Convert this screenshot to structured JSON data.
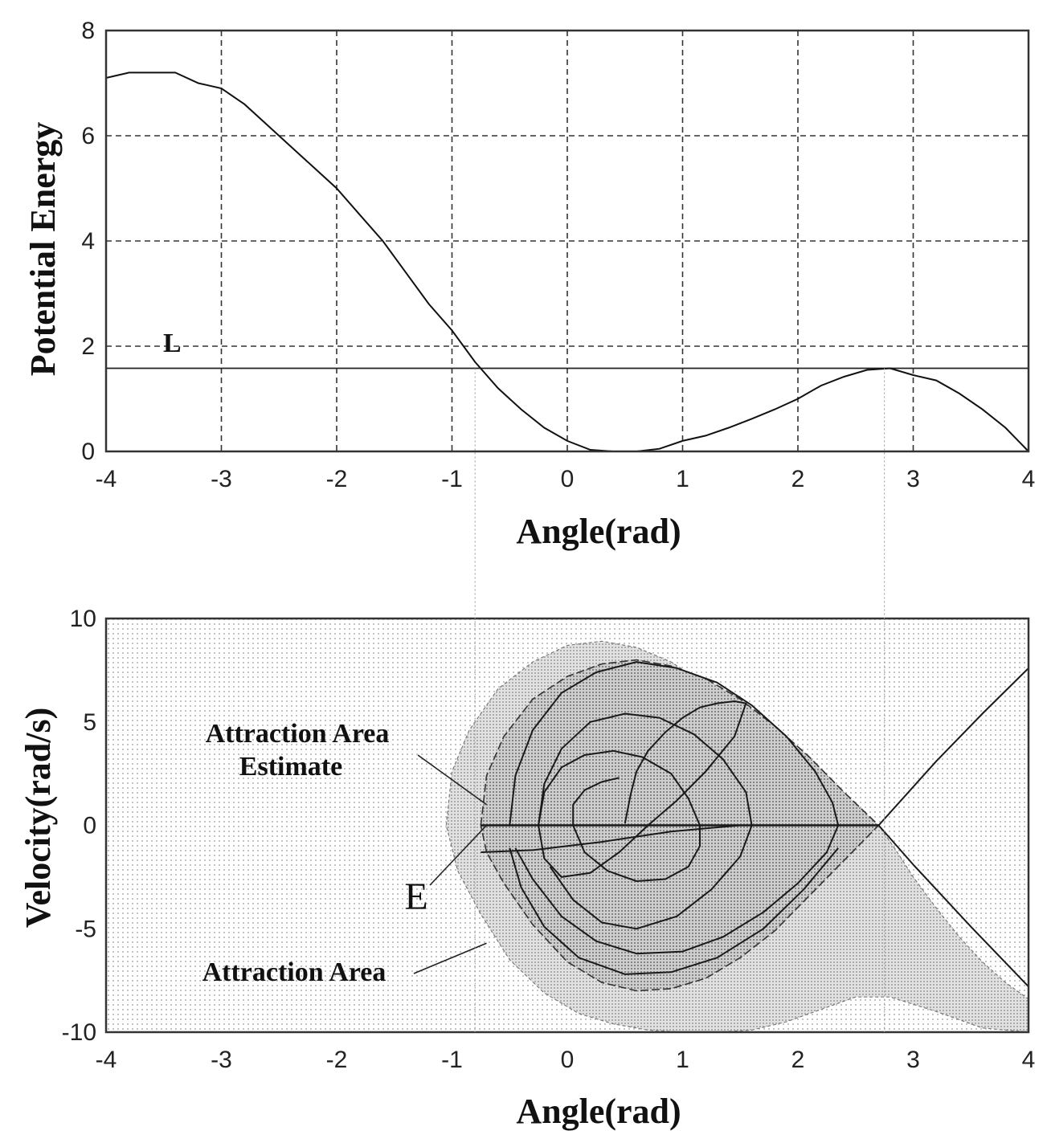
{
  "chart_data": [
    {
      "type": "line",
      "xlabel": "Angle(rad)",
      "ylabel": "Potential Energy",
      "xlim": [
        -4,
        4
      ],
      "ylim": [
        0,
        8
      ],
      "x_ticks": [
        -4,
        -3,
        -2,
        -1,
        0,
        1,
        2,
        3,
        4
      ],
      "y_ticks": [
        0,
        2,
        4,
        6,
        8
      ],
      "grid": "dashed",
      "series": [
        {
          "x": [
            -4.0,
            -3.8,
            -3.6,
            -3.4,
            -3.2,
            -3.0,
            -2.8,
            -2.6,
            -2.4,
            -2.2,
            -2.0,
            -1.8,
            -1.6,
            -1.4,
            -1.2,
            -1.0,
            -0.8,
            -0.6,
            -0.4,
            -0.2,
            0.0,
            0.2,
            0.4,
            0.6,
            0.8,
            1.0,
            1.2,
            1.4,
            1.6,
            1.8,
            2.0,
            2.2,
            2.4,
            2.6,
            2.8,
            3.0,
            3.2,
            3.4,
            3.6,
            3.8,
            4.0
          ],
          "y": [
            7.1,
            7.2,
            7.2,
            7.2,
            7.0,
            6.9,
            6.6,
            6.2,
            5.8,
            5.4,
            5.0,
            4.5,
            4.0,
            3.4,
            2.8,
            2.3,
            1.7,
            1.2,
            0.8,
            0.45,
            0.2,
            0.03,
            0.0,
            0.0,
            0.05,
            0.2,
            0.3,
            0.45,
            0.62,
            0.8,
            1.0,
            1.25,
            1.42,
            1.55,
            1.58,
            1.45,
            1.35,
            1.1,
            0.8,
            0.45,
            0.0
          ]
        }
      ],
      "reference_lines": [
        {
          "y": 1.58,
          "label": "L"
        }
      ]
    },
    {
      "type": "line",
      "xlabel": "Angle(rad)",
      "ylabel": "Velocity(rad/s)",
      "xlim": [
        -4,
        4
      ],
      "ylim": [
        -10,
        10
      ],
      "x_ticks": [
        -4,
        -3,
        -2,
        -1,
        0,
        1,
        2,
        3,
        4
      ],
      "y_ticks": [
        -10,
        -5,
        0,
        5,
        10
      ],
      "grid": "off",
      "annotations": [
        {
          "text": "Attraction Area Estimate",
          "lines": [
            "Attraction Area",
            "Estimate"
          ],
          "target": [
            -0.7,
            1.0
          ]
        },
        {
          "text": "E",
          "target": [
            -0.7,
            0.0
          ]
        },
        {
          "text": "Attraction Area",
          "target": [
            -0.7,
            -5.7
          ]
        }
      ],
      "regions": {
        "estimate_boundary": {
          "x": [
            -0.75,
            -0.7,
            -0.55,
            -0.3,
            0.0,
            0.3,
            0.6,
            0.9,
            1.2,
            1.5,
            1.8,
            2.1,
            2.4,
            2.7,
            2.4,
            2.1,
            1.8,
            1.5,
            1.2,
            0.9,
            0.6,
            0.3,
            0.0,
            -0.3,
            -0.55,
            -0.7
          ],
          "y": [
            0.0,
            2.4,
            4.3,
            6.1,
            7.2,
            7.8,
            8.0,
            7.7,
            7.1,
            6.1,
            4.8,
            3.3,
            1.6,
            0.0,
            -1.7,
            -3.4,
            -5.1,
            -6.4,
            -7.4,
            -7.9,
            -8.0,
            -7.6,
            -6.6,
            -4.8,
            -2.8,
            -1.3
          ]
        },
        "attraction_boundary": {
          "x": [
            -1.05,
            -1.0,
            -0.85,
            -0.6,
            -0.3,
            0.0,
            0.3,
            0.6,
            0.9,
            1.2,
            1.5,
            1.8,
            2.1,
            2.4,
            2.7,
            2.85,
            3.0,
            3.2,
            3.4,
            3.6,
            3.8,
            4.0,
            4.0,
            3.6,
            3.2,
            2.8,
            2.5,
            2.2,
            1.9,
            1.6,
            1.3,
            1.0,
            0.7,
            0.4,
            0.1,
            -0.2,
            -0.5,
            -0.75,
            -0.95
          ],
          "y": [
            0.0,
            2.6,
            4.6,
            6.6,
            7.9,
            8.7,
            8.9,
            8.6,
            7.9,
            6.8,
            5.4,
            3.9,
            2.4,
            1.0,
            0.0,
            -1.2,
            -2.5,
            -4.0,
            -5.4,
            -6.6,
            -7.6,
            -8.4,
            -10.0,
            -9.8,
            -9.0,
            -8.3,
            -8.3,
            -8.9,
            -9.5,
            -9.9,
            -10.0,
            -10.0,
            -9.9,
            -9.6,
            -9.1,
            -8.1,
            -6.5,
            -4.3,
            -2.2
          ]
        }
      },
      "series": [
        {
          "x": [
            -0.75,
            2.7
          ],
          "y": [
            0.0,
            0.0
          ]
        },
        {
          "x": [
            -0.75,
            -0.3,
            0.3,
            0.9,
            1.5,
            2.1,
            2.4,
            2.7,
            3.0,
            3.5,
            4.0
          ],
          "y": [
            -1.3,
            -1.2,
            -0.8,
            -0.3,
            0.0,
            0.0,
            0.0,
            0.0,
            -1.9,
            -4.9,
            -7.8
          ]
        },
        {
          "x": [
            2.7,
            3.2,
            3.6,
            4.0
          ],
          "y": [
            0.0,
            3.1,
            5.4,
            7.6
          ]
        },
        {
          "x": [
            0.5,
            0.55,
            0.6,
            0.7,
            0.85,
            1.0,
            1.15,
            1.3,
            1.45,
            1.55,
            1.45,
            1.2,
            0.95,
            0.7,
            0.45,
            0.2,
            -0.05,
            -0.2,
            -0.25,
            -0.2,
            -0.05,
            0.15,
            0.4,
            0.65,
            0.9,
            1.05,
            1.15,
            1.15,
            1.05,
            0.85,
            0.6,
            0.35,
            0.15,
            0.05,
            0.05,
            0.15,
            0.3,
            0.45
          ],
          "y": [
            0.1,
            1.5,
            2.6,
            3.6,
            4.5,
            5.2,
            5.7,
            5.9,
            6.0,
            5.9,
            4.3,
            2.6,
            1.2,
            0.0,
            -1.3,
            -2.3,
            -2.5,
            -1.6,
            0.0,
            1.6,
            2.8,
            3.4,
            3.6,
            3.3,
            2.5,
            1.3,
            0.0,
            -1.0,
            -2.0,
            -2.6,
            -2.7,
            -2.2,
            -1.3,
            0.0,
            1.0,
            1.7,
            2.1,
            2.3
          ]
        },
        {
          "x": [
            -0.5,
            -0.45,
            -0.3,
            -0.05,
            0.25,
            0.6,
            0.95,
            1.3,
            1.6,
            1.9,
            2.15,
            2.3,
            2.35,
            2.25,
            2.0,
            1.7,
            1.35,
            1.0,
            0.6,
            0.25,
            -0.05,
            -0.3,
            -0.45
          ],
          "y": [
            0.0,
            2.4,
            4.6,
            6.4,
            7.4,
            7.9,
            7.6,
            6.9,
            5.8,
            4.3,
            2.6,
            1.1,
            0.0,
            -1.3,
            -2.8,
            -4.2,
            -5.4,
            -6.1,
            -6.2,
            -5.6,
            -4.4,
            -2.6,
            -1.1
          ]
        },
        {
          "x": [
            -0.25,
            -0.2,
            -0.05,
            0.2,
            0.5,
            0.8,
            1.1,
            1.35,
            1.55,
            1.6,
            1.5,
            1.25,
            0.95,
            0.6,
            0.3,
            0.05,
            -0.15
          ],
          "y": [
            0.0,
            2.0,
            3.7,
            5.0,
            5.4,
            5.2,
            4.4,
            3.2,
            1.6,
            0.0,
            -1.5,
            -3.1,
            -4.4,
            -5.0,
            -4.7,
            -3.6,
            -2.0
          ]
        },
        {
          "x": [
            -0.5,
            -0.4,
            -0.2,
            0.1,
            0.5,
            0.9,
            1.3,
            1.7,
            2.05,
            2.35
          ],
          "y": [
            -1.1,
            -3.0,
            -4.9,
            -6.4,
            -7.2,
            -7.1,
            -6.4,
            -5.0,
            -3.1,
            -1.1
          ]
        }
      ]
    }
  ],
  "texts": {
    "top_xlabel": "Angle(rad)",
    "top_ylabel": "Potential Energy",
    "top_marker": "L",
    "bottom_xlabel": "Angle(rad)",
    "bottom_ylabel": "Velocity(rad/s)",
    "annot_estimate_1": "Attraction Area",
    "annot_estimate_2": "Estimate",
    "annot_e": "E",
    "annot_area": "Attraction Area"
  }
}
